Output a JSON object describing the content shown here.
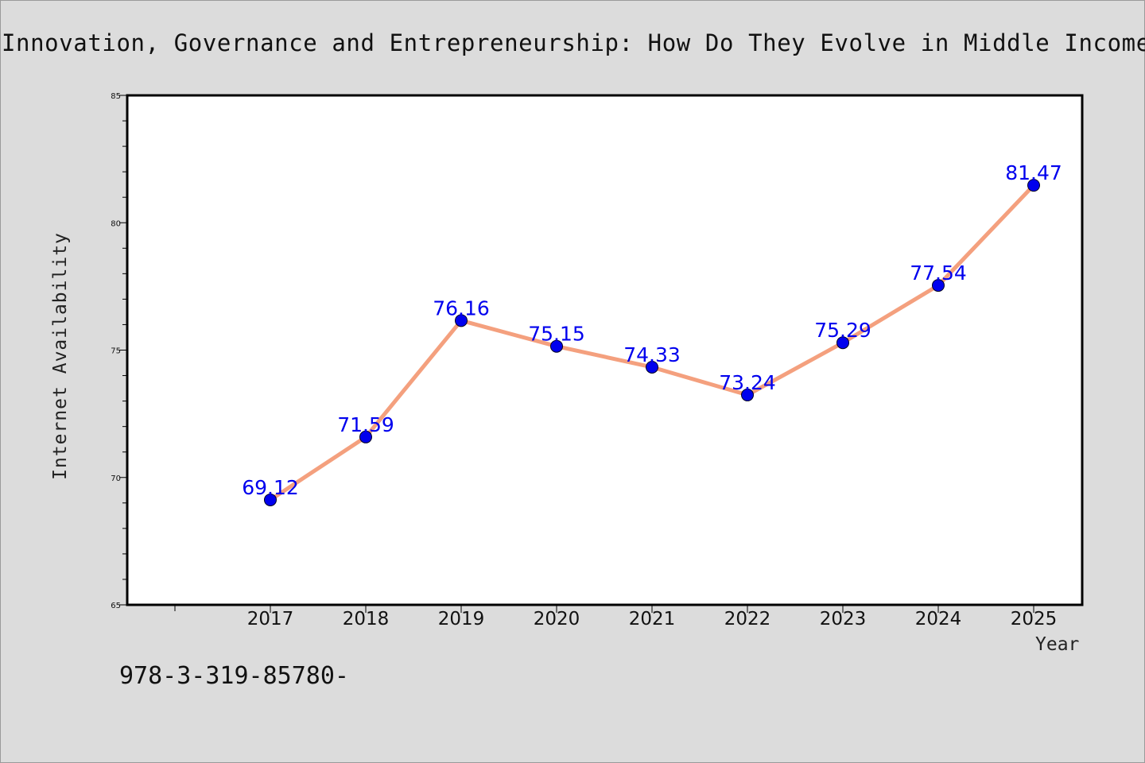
{
  "chart_data": {
    "type": "line",
    "title": "Innovation, Governance and Entrepreneurship: How Do They Evolve in Middle Income",
    "xlabel": "Year",
    "ylabel": "Internet Availability",
    "categories": [
      "2017",
      "2018",
      "2019",
      "2020",
      "2021",
      "2022",
      "2023",
      "2024",
      "2025"
    ],
    "series": [
      {
        "values": [
          69.12,
          71.59,
          76.16,
          75.15,
          74.33,
          73.24,
          75.29,
          77.54,
          81.47
        ],
        "labels": [
          "69.12",
          "71.59",
          "76.16",
          "75.15",
          "74.33",
          "73.24",
          "75.29",
          "77.54",
          "81.47"
        ]
      }
    ],
    "ylim": [
      65,
      85
    ],
    "yticks": [
      "65",
      "70",
      "75",
      "80",
      "85"
    ],
    "grid": false,
    "line_color": "#f4a07e",
    "marker_color": "#0000ee",
    "label_color": "#0000ee"
  },
  "footnote": "978-3-319-85780-"
}
